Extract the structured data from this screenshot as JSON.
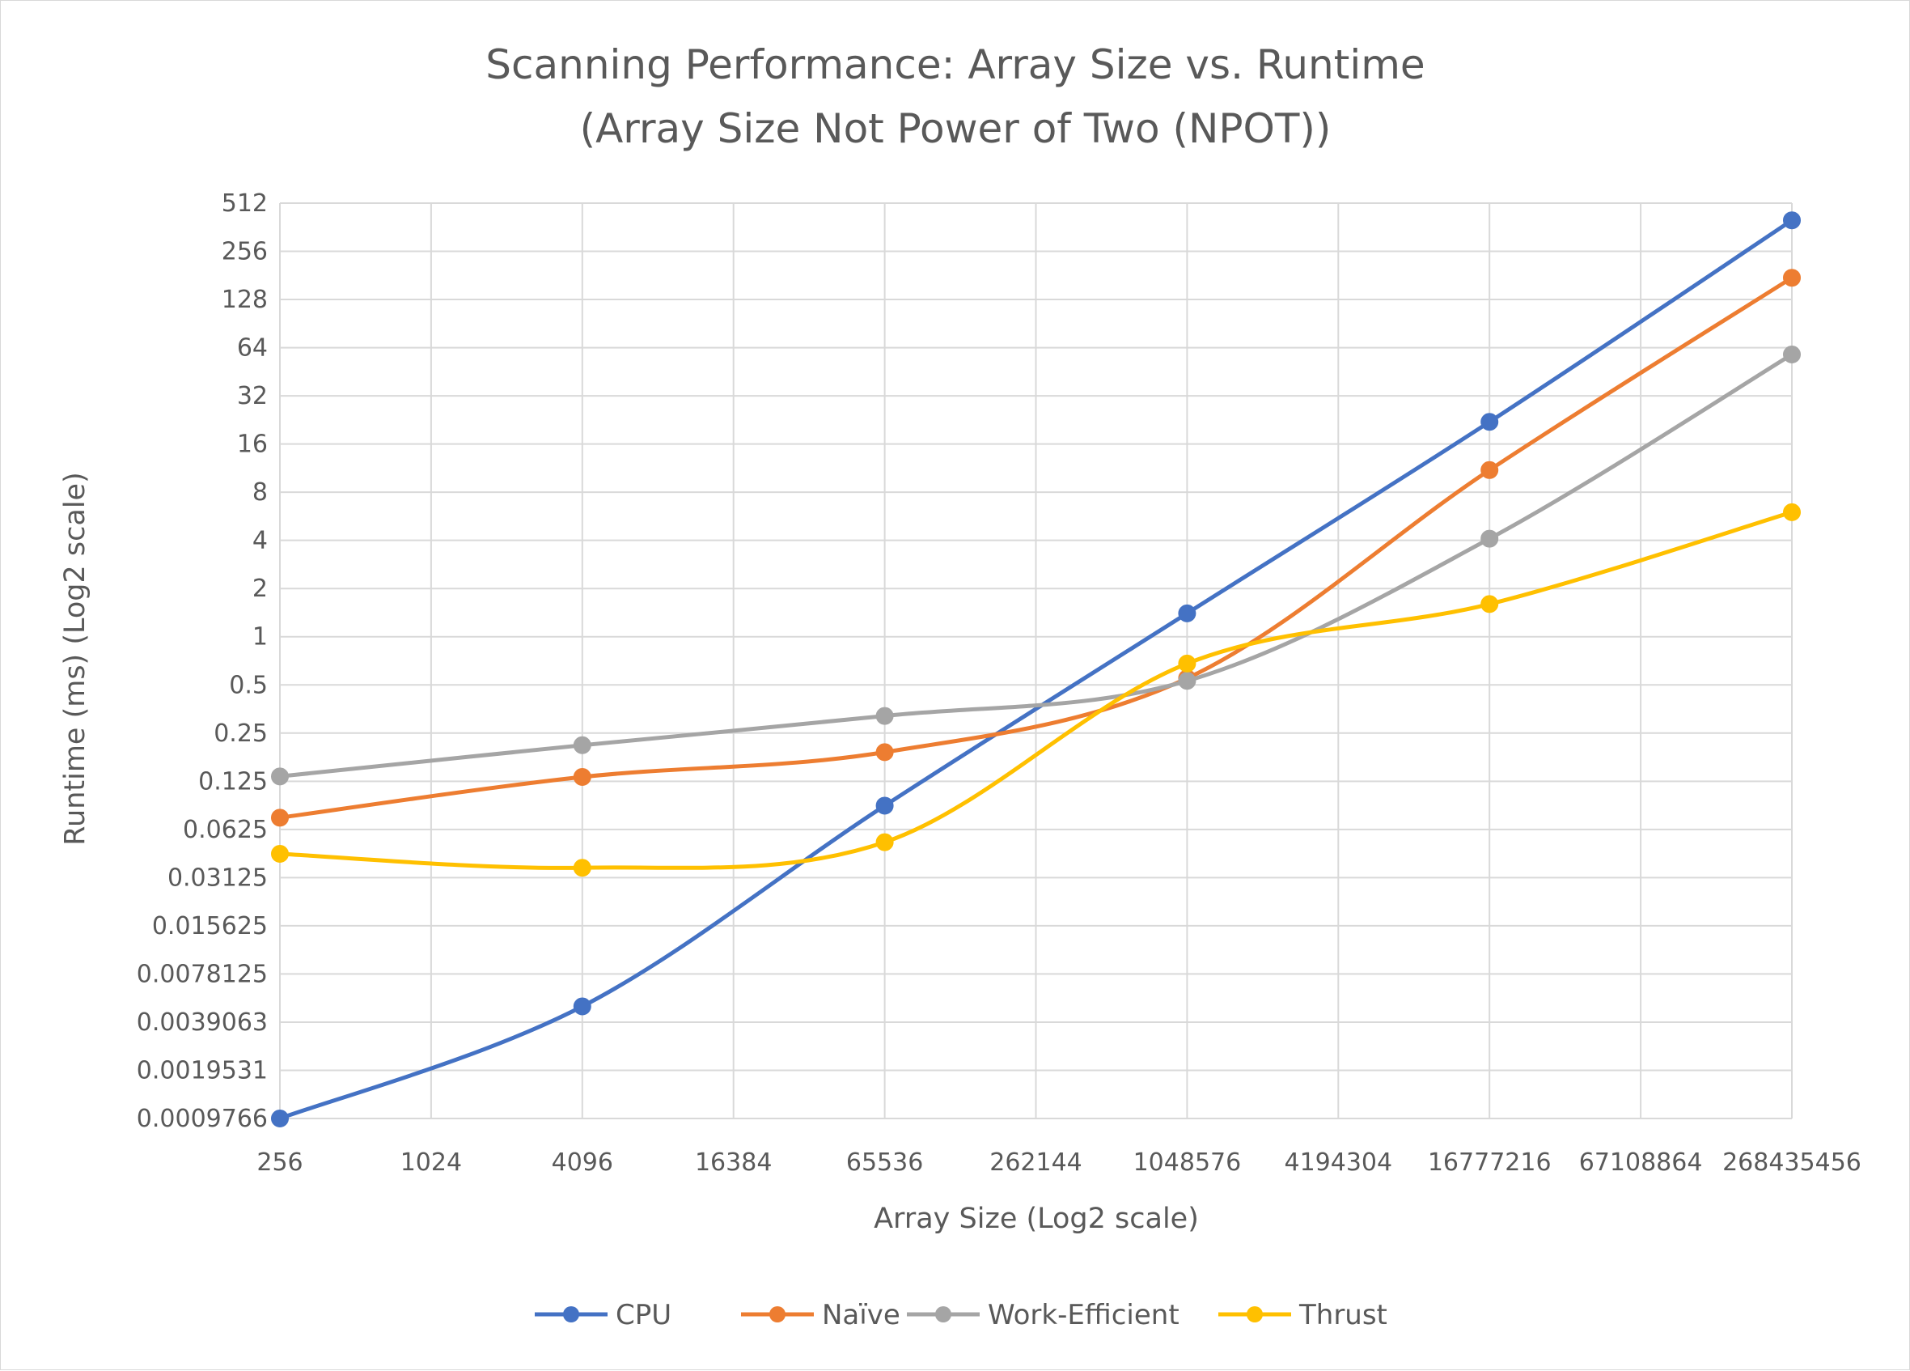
{
  "chart_data": {
    "type": "line",
    "title": "Scanning Performance: Array Size vs. Runtime",
    "subtitle": "(Array Size Not Power of Two (NPOT))",
    "xlabel": "Array Size (Log2 scale)",
    "ylabel": "Runtime (ms) (Log2 scale)",
    "x_scale": "log2",
    "y_scale": "log2",
    "x_ticks": [
      "256",
      "1024",
      "4096",
      "16384",
      "65536",
      "262144",
      "1048576",
      "4194304",
      "16777216",
      "67108864",
      "268435456"
    ],
    "y_ticks": [
      "0.0009766",
      "0.0019531",
      "0.0039063",
      "0.0078125",
      "0.015625",
      "0.03125",
      "0.0625",
      "0.125",
      "0.25",
      "0.5",
      "1",
      "2",
      "4",
      "8",
      "16",
      "32",
      "64",
      "128",
      "256",
      "512"
    ],
    "xlim": [
      256,
      268435456
    ],
    "ylim": [
      0.0009766,
      512
    ],
    "grid": true,
    "legend_position": "bottom",
    "x": [
      256,
      4096,
      65536,
      1048576,
      16777216,
      268435456
    ],
    "series": [
      {
        "name": "CPU",
        "color": "#4472C4",
        "values": [
          0.0009766,
          0.0049,
          0.088,
          1.4,
          22,
          400
        ]
      },
      {
        "name": "Naïve",
        "color": "#ED7D31",
        "values": [
          0.074,
          0.133,
          0.19,
          0.55,
          11,
          175
        ]
      },
      {
        "name": "Work-Efficient",
        "color": "#A5A5A5",
        "values": [
          0.134,
          0.21,
          0.32,
          0.53,
          4.1,
          58
        ]
      },
      {
        "name": "Thrust",
        "color": "#FFC000",
        "values": [
          0.044,
          0.036,
          0.052,
          0.68,
          1.6,
          6
        ]
      }
    ]
  }
}
